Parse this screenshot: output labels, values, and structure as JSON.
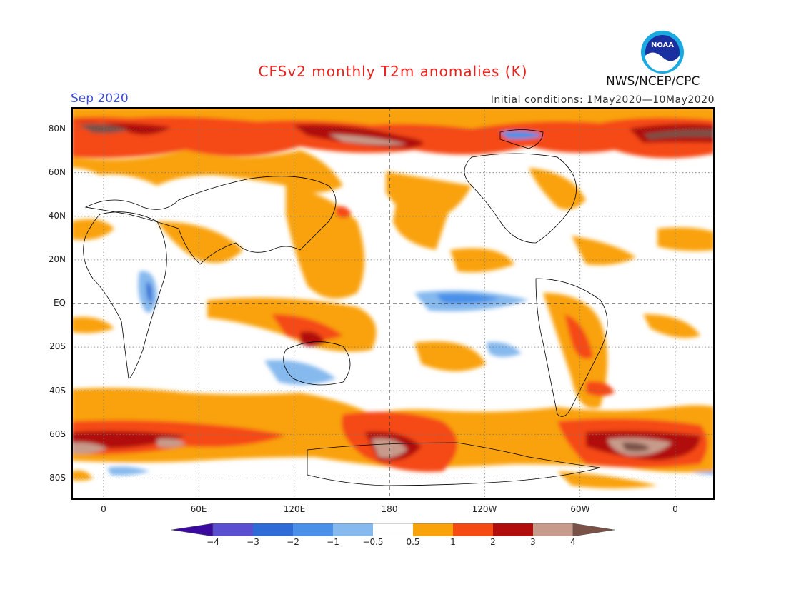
{
  "header": {
    "title": "CFSv2 monthly T2m anomalies (K)",
    "month": "Sep 2020",
    "initial_conditions": "Initial conditions: 1May2020—10May2020",
    "agency": "NWS/NCEP/CPC",
    "logo_text": "NOAA"
  },
  "axes": {
    "lat_labels": [
      "80N",
      "60N",
      "40N",
      "20N",
      "EQ",
      "20S",
      "40S",
      "60S",
      "80S"
    ],
    "lon_labels": [
      "0",
      "60E",
      "120E",
      "180",
      "120W",
      "60W",
      "0"
    ]
  },
  "colorbar": {
    "labels": [
      "−4",
      "−3",
      "−2",
      "−1",
      "−0.5",
      "0.5",
      "1",
      "2",
      "3",
      "4"
    ],
    "colors": [
      "#3a0aa0",
      "#5a4fd0",
      "#2f6bd6",
      "#4a90e8",
      "#86b9ee",
      "#ffffff",
      "#f9a20a",
      "#f54a12",
      "#b10d0d",
      "#c79b8b",
      "#7a5147"
    ]
  }
}
